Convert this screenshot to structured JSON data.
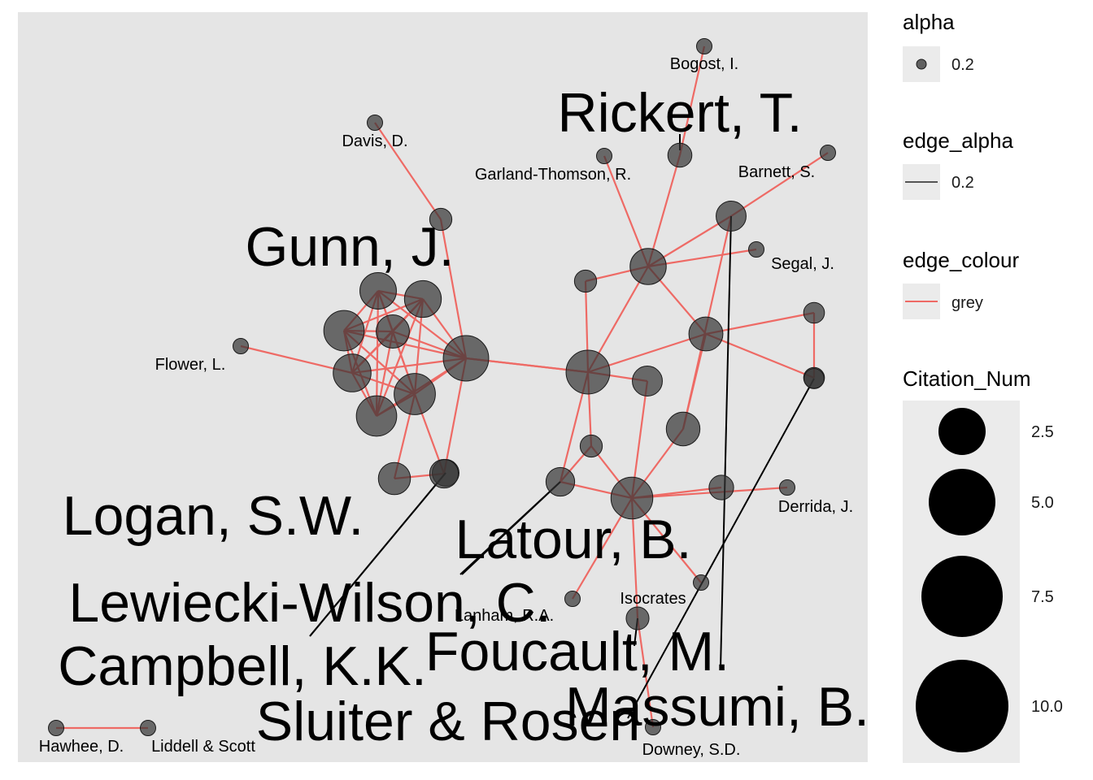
{
  "colors": {
    "panel": "#e5e5e5",
    "node_fill": "#333333",
    "node_stroke": "#1a1a1a",
    "edge": "#ee6a65",
    "leader": "#000000",
    "legend_key_bg": "#ebebeb"
  },
  "chart_data": {
    "type": "network",
    "nodes": [
      {
        "id": "bogost",
        "label": "Bogost, I.",
        "size": 0.1,
        "label_size": "small"
      },
      {
        "id": "rickert",
        "label": "Rickert, T.",
        "size": 1.5,
        "label_size": "large"
      },
      {
        "id": "garland",
        "label": "Garland-Thomson, R.",
        "size": 0.1,
        "label_size": "small"
      },
      {
        "id": "barnett",
        "label": "Barnett, S.",
        "size": 0.1,
        "label_size": "small"
      },
      {
        "id": "barnett_hub",
        "label": "",
        "size": 2.7
      },
      {
        "id": "segal",
        "label": "Segal, J.",
        "size": 0.1,
        "label_size": "small"
      },
      {
        "id": "r_hub1",
        "label": "",
        "size": 4.3
      },
      {
        "id": "r_small1",
        "label": "",
        "size": 1.2
      },
      {
        "id": "davis",
        "label": "Davis, D.",
        "size": 0.1,
        "label_size": "small"
      },
      {
        "id": "davis_hub",
        "label": "",
        "size": 1.2
      },
      {
        "id": "flower",
        "label": "Flower, L.",
        "size": 0.1,
        "label_size": "small"
      },
      {
        "id": "gunn",
        "label": "Gunn, J.",
        "size": 4.4,
        "label_size": "large"
      },
      {
        "id": "g2",
        "label": "",
        "size": 4.5
      },
      {
        "id": "g3",
        "label": "",
        "size": 5.6
      },
      {
        "id": "g4",
        "label": "",
        "size": 3.5
      },
      {
        "id": "g5",
        "label": "",
        "size": 4.8
      },
      {
        "id": "g_big",
        "label": "",
        "size": 7.4
      },
      {
        "id": "g7",
        "label": "",
        "size": 5.6
      },
      {
        "id": "g8",
        "label": "",
        "size": 5.9
      },
      {
        "id": "g9",
        "label": "",
        "size": 3.2
      },
      {
        "id": "logan",
        "label": "Logan, S.W.",
        "size": 2.0,
        "label_size": "large"
      },
      {
        "id": "campbell",
        "label": "Campbell, K.K.",
        "size": 2.4,
        "label_size": "large"
      },
      {
        "id": "r_center",
        "label": "",
        "size": 6.8
      },
      {
        "id": "r_mid",
        "label": "",
        "size": 2.7
      },
      {
        "id": "r_right_top",
        "label": "",
        "size": 3.7
      },
      {
        "id": "r_far1",
        "label": "",
        "size": 1.0
      },
      {
        "id": "r_far2",
        "label": "",
        "size": 1.0
      },
      {
        "id": "massumi",
        "label": "Massumi, B.",
        "size": 0.9,
        "label_size": "large"
      },
      {
        "id": "r_right_low",
        "label": "",
        "size": 3.6
      },
      {
        "id": "latour",
        "label": "Latour, B.",
        "size": 1.2,
        "label_size": "large"
      },
      {
        "id": "lewiecki",
        "label": "Lewiecki-Wilson, C.",
        "size": 2.4,
        "label_size": "large"
      },
      {
        "id": "r_bottom",
        "label": "",
        "size": 6.1
      },
      {
        "id": "foucault",
        "label": "Foucault, M.",
        "size": 1.6,
        "label_size": "large"
      },
      {
        "id": "derrida",
        "label": "Derrida, J.",
        "size": 0.1,
        "label_size": "small"
      },
      {
        "id": "isocrates",
        "label": "Isocrates",
        "size": 0.1,
        "label_size": "small"
      },
      {
        "id": "lanham",
        "label": "Lanham, R.A.",
        "size": 0.1,
        "label_size": "small"
      },
      {
        "id": "sluiter",
        "label": "Sluiter & Rosen",
        "size": 1.3,
        "label_size": "large"
      },
      {
        "id": "downey",
        "label": "Downey, S.D.",
        "size": 0.1,
        "label_size": "small"
      },
      {
        "id": "hawhee",
        "label": "Hawhee, D.",
        "size": 0.1,
        "label_size": "small"
      },
      {
        "id": "liddell",
        "label": "Liddell & Scott",
        "size": 0.1,
        "label_size": "small"
      }
    ],
    "edges": [
      [
        "bogost",
        "rickert"
      ],
      [
        "rickert",
        "r_hub1"
      ],
      [
        "garland",
        "r_hub1"
      ],
      [
        "r_small1",
        "r_hub1"
      ],
      [
        "r_hub1",
        "barnett_hub"
      ],
      [
        "barnett",
        "barnett_hub"
      ],
      [
        "r_hub1",
        "segal"
      ],
      [
        "r_hub1",
        "r_center"
      ],
      [
        "r_hub1",
        "r_right_top"
      ],
      [
        "r_small1",
        "r_center"
      ],
      [
        "r_center",
        "r_mid"
      ],
      [
        "r_center",
        "r_right_top"
      ],
      [
        "r_center",
        "latour"
      ],
      [
        "r_center",
        "lewiecki"
      ],
      [
        "r_center",
        "g_big"
      ],
      [
        "r_right_top",
        "r_far1"
      ],
      [
        "r_right_top",
        "r_far2"
      ],
      [
        "r_far1",
        "r_far2"
      ],
      [
        "r_right_top",
        "r_right_low"
      ],
      [
        "barnett_hub",
        "r_right_low"
      ],
      [
        "r_mid",
        "r_bottom"
      ],
      [
        "r_right_low",
        "r_bottom"
      ],
      [
        "latour",
        "r_bottom"
      ],
      [
        "lewiecki",
        "r_bottom"
      ],
      [
        "foucault",
        "r_bottom"
      ],
      [
        "r_bottom",
        "derrida"
      ],
      [
        "r_bottom",
        "isocrates"
      ],
      [
        "r_bottom",
        "lanham"
      ],
      [
        "r_bottom",
        "sluiter"
      ],
      [
        "sluiter",
        "downey"
      ],
      [
        "lewiecki",
        "latour"
      ],
      [
        "davis",
        "davis_hub"
      ],
      [
        "davis_hub",
        "g_big"
      ],
      [
        "flower",
        "g5"
      ],
      [
        "gunn",
        "g2"
      ],
      [
        "gunn",
        "g3"
      ],
      [
        "gunn",
        "g4"
      ],
      [
        "gunn",
        "g5"
      ],
      [
        "gunn",
        "g_big"
      ],
      [
        "gunn",
        "g7"
      ],
      [
        "gunn",
        "g8"
      ],
      [
        "g2",
        "g3"
      ],
      [
        "g2",
        "g4"
      ],
      [
        "g2",
        "g5"
      ],
      [
        "g2",
        "g_big"
      ],
      [
        "g2",
        "g7"
      ],
      [
        "g2",
        "g8"
      ],
      [
        "g3",
        "g4"
      ],
      [
        "g3",
        "g5"
      ],
      [
        "g3",
        "g_big"
      ],
      [
        "g3",
        "g7"
      ],
      [
        "g3",
        "g8"
      ],
      [
        "g4",
        "g5"
      ],
      [
        "g4",
        "g_big"
      ],
      [
        "g4",
        "g7"
      ],
      [
        "g4",
        "g8"
      ],
      [
        "g5",
        "g_big"
      ],
      [
        "g5",
        "g7"
      ],
      [
        "g5",
        "g8"
      ],
      [
        "g_big",
        "g7"
      ],
      [
        "g_big",
        "g8"
      ],
      [
        "g7",
        "g8"
      ],
      [
        "g8",
        "g9"
      ],
      [
        "g8",
        "campbell"
      ],
      [
        "g9",
        "campbell"
      ],
      [
        "g_big",
        "campbell"
      ],
      [
        "g_big",
        "r_center"
      ],
      [
        "hawhee",
        "liddell"
      ]
    ],
    "legend": {
      "alpha": {
        "title": "alpha",
        "value": "0.2"
      },
      "edge_alpha": {
        "title": "edge_alpha",
        "value": "0.2"
      },
      "edge_colour": {
        "title": "edge_colour",
        "value": "grey"
      },
      "size": {
        "title": "Citation_Num",
        "breaks": [
          "2.5",
          "5.0",
          "7.5",
          "10.0"
        ],
        "break_values": [
          2.5,
          5.0,
          7.5,
          10.0
        ]
      }
    }
  }
}
